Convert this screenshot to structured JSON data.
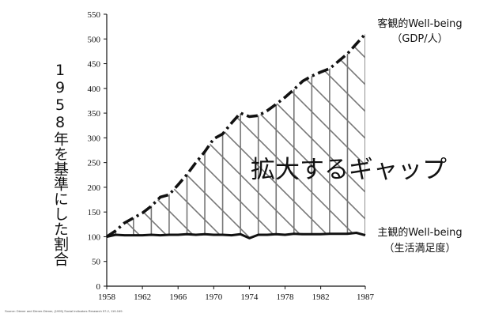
{
  "chart_data": {
    "type": "line",
    "x": [
      1958,
      1959,
      1960,
      1961,
      1962,
      1963,
      1964,
      1965,
      1966,
      1967,
      1968,
      1969,
      1970,
      1971,
      1972,
      1973,
      1974,
      1975,
      1976,
      1977,
      1978,
      1979,
      1980,
      1981,
      1982,
      1983,
      1984,
      1985,
      1986,
      1987
    ],
    "xticks": [
      1958,
      1962,
      1966,
      1970,
      1974,
      1978,
      1982,
      1987
    ],
    "yticks": [
      0,
      50,
      100,
      150,
      200,
      250,
      300,
      350,
      400,
      450,
      500,
      550
    ],
    "ylim": [
      0,
      550
    ],
    "xlim": [
      1958,
      1987
    ],
    "ylabel": "1958年を基準にした割合",
    "series": [
      {
        "name": "客観的Well-being",
        "sub": "（GDP/人）",
        "style": "dash-dot",
        "values": [
          100,
          112,
          128,
          138,
          148,
          162,
          180,
          185,
          205,
          226,
          250,
          272,
          298,
          308,
          330,
          350,
          343,
          345,
          355,
          368,
          382,
          398,
          415,
          425,
          433,
          440,
          455,
          470,
          490,
          510
        ]
      },
      {
        "name": "主観的Well-being",
        "sub": "（生活満足度）",
        "style": "solid",
        "values": [
          100,
          104,
          103,
          103,
          103,
          104,
          103,
          104,
          104,
          105,
          104,
          105,
          104,
          104,
          103,
          105,
          97,
          104,
          104,
          105,
          104,
          106,
          105,
          105,
          105,
          106,
          106,
          106,
          108,
          103
        ]
      }
    ],
    "annotation": "拡大するギャップ",
    "grid": false
  },
  "source": "Source: Diener and Diener-Diener, (1995) Social Indicators Research 57-2, 119-169.",
  "colors": {
    "line": "#111111",
    "hatch": "#777777",
    "background": "#ffffff"
  }
}
